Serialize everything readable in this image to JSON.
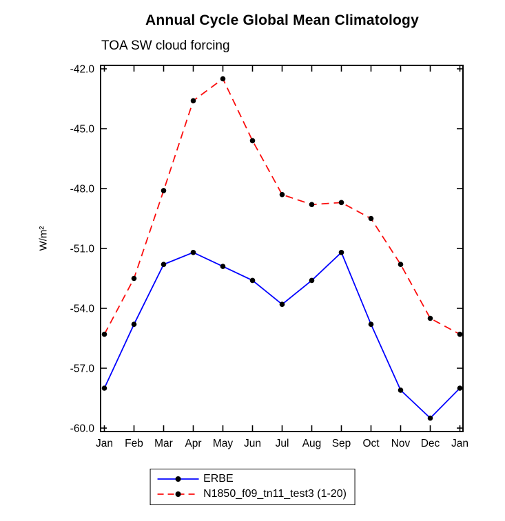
{
  "chart_data": {
    "type": "line",
    "title": "Annual Cycle Global Mean Climatology",
    "subtitle": "TOA SW cloud forcing",
    "ylabel": "W/m²",
    "xlabel": "",
    "categories": [
      "Jan",
      "Feb",
      "Mar",
      "Apr",
      "May",
      "Jun",
      "Jul",
      "Aug",
      "Sep",
      "Oct",
      "Nov",
      "Dec",
      "Jan"
    ],
    "ylim": [
      -60.0,
      -42.0
    ],
    "yticks": [
      -42.0,
      -45.0,
      -48.0,
      -51.0,
      -54.0,
      -57.0,
      -60.0
    ],
    "grid": "off",
    "legend_position": "bottom-center",
    "marker_color": "#000000",
    "axis_color": "#000000",
    "series": [
      {
        "name": "ERBE",
        "color": "#0000ff",
        "style": "solid",
        "values": [
          -58.0,
          -54.8,
          -51.8,
          -51.2,
          -51.9,
          -52.6,
          -53.8,
          -52.6,
          -51.2,
          -54.8,
          -58.1,
          -59.5,
          -58.0
        ]
      },
      {
        "name": "N1850_f09_tn11_test3 (1-20)",
        "color": "#fb0d0d",
        "style": "dashed",
        "values": [
          -55.3,
          -52.5,
          -48.1,
          -43.6,
          -42.5,
          -45.6,
          -48.3,
          -48.8,
          -48.7,
          -49.5,
          -51.8,
          -54.5,
          -55.3
        ]
      }
    ]
  }
}
